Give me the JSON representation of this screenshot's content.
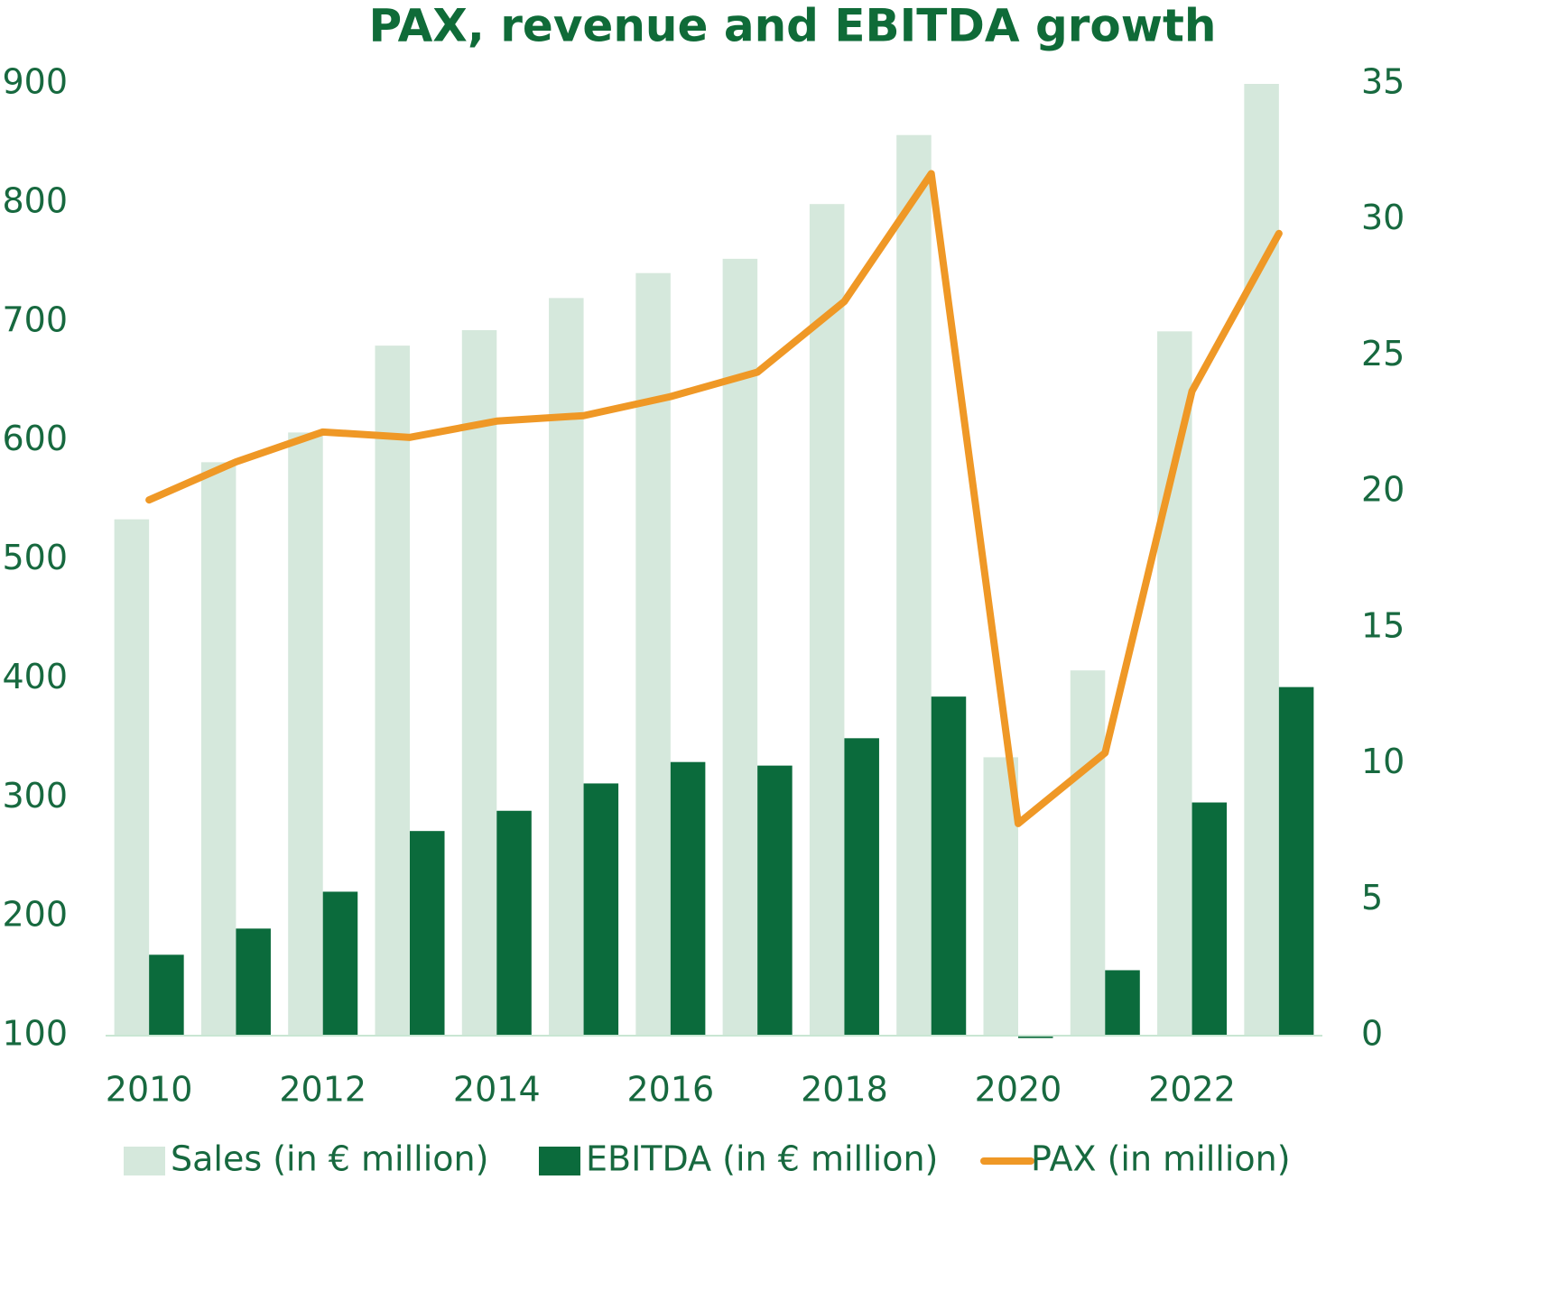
{
  "chart_data": {
    "type": "bar",
    "title": "PAX, revenue and EBITDA growth",
    "categories": [
      "2010",
      null,
      "2012",
      null,
      "2014",
      null,
      "2016",
      null,
      "2018",
      null,
      "2020",
      null,
      "2022",
      null
    ],
    "series": [
      {
        "name": "Sales (in € million)",
        "type": "bar",
        "color": "#d5e8dc",
        "values": [
          534,
          582,
          607,
          680,
          693,
          720,
          741,
          753,
          799,
          857,
          334,
          407,
          692,
          900
        ]
      },
      {
        "name": "EBITDA (in € million)",
        "type": "bar",
        "color": "#0b6b3c",
        "values": [
          168,
          190,
          221,
          272,
          289,
          312,
          330,
          327,
          350,
          385,
          98,
          155,
          296,
          393
        ]
      },
      {
        "name": "PAX (in million)",
        "type": "line",
        "axis": "y2",
        "color": "#ef9826",
        "values": [
          19.7,
          21.1,
          22.2,
          22.0,
          22.6,
          22.8,
          23.5,
          24.4,
          27.0,
          31.7,
          7.8,
          10.4,
          23.7,
          29.5
        ]
      }
    ],
    "ylim": [
      100,
      900
    ],
    "yticks": [
      100,
      200,
      300,
      400,
      500,
      600,
      700,
      800,
      900
    ],
    "y2lim": [
      0,
      35
    ],
    "y2ticks": [
      0,
      5,
      10,
      15,
      20,
      25,
      30,
      35
    ],
    "legend": "bottom",
    "grid": false
  }
}
